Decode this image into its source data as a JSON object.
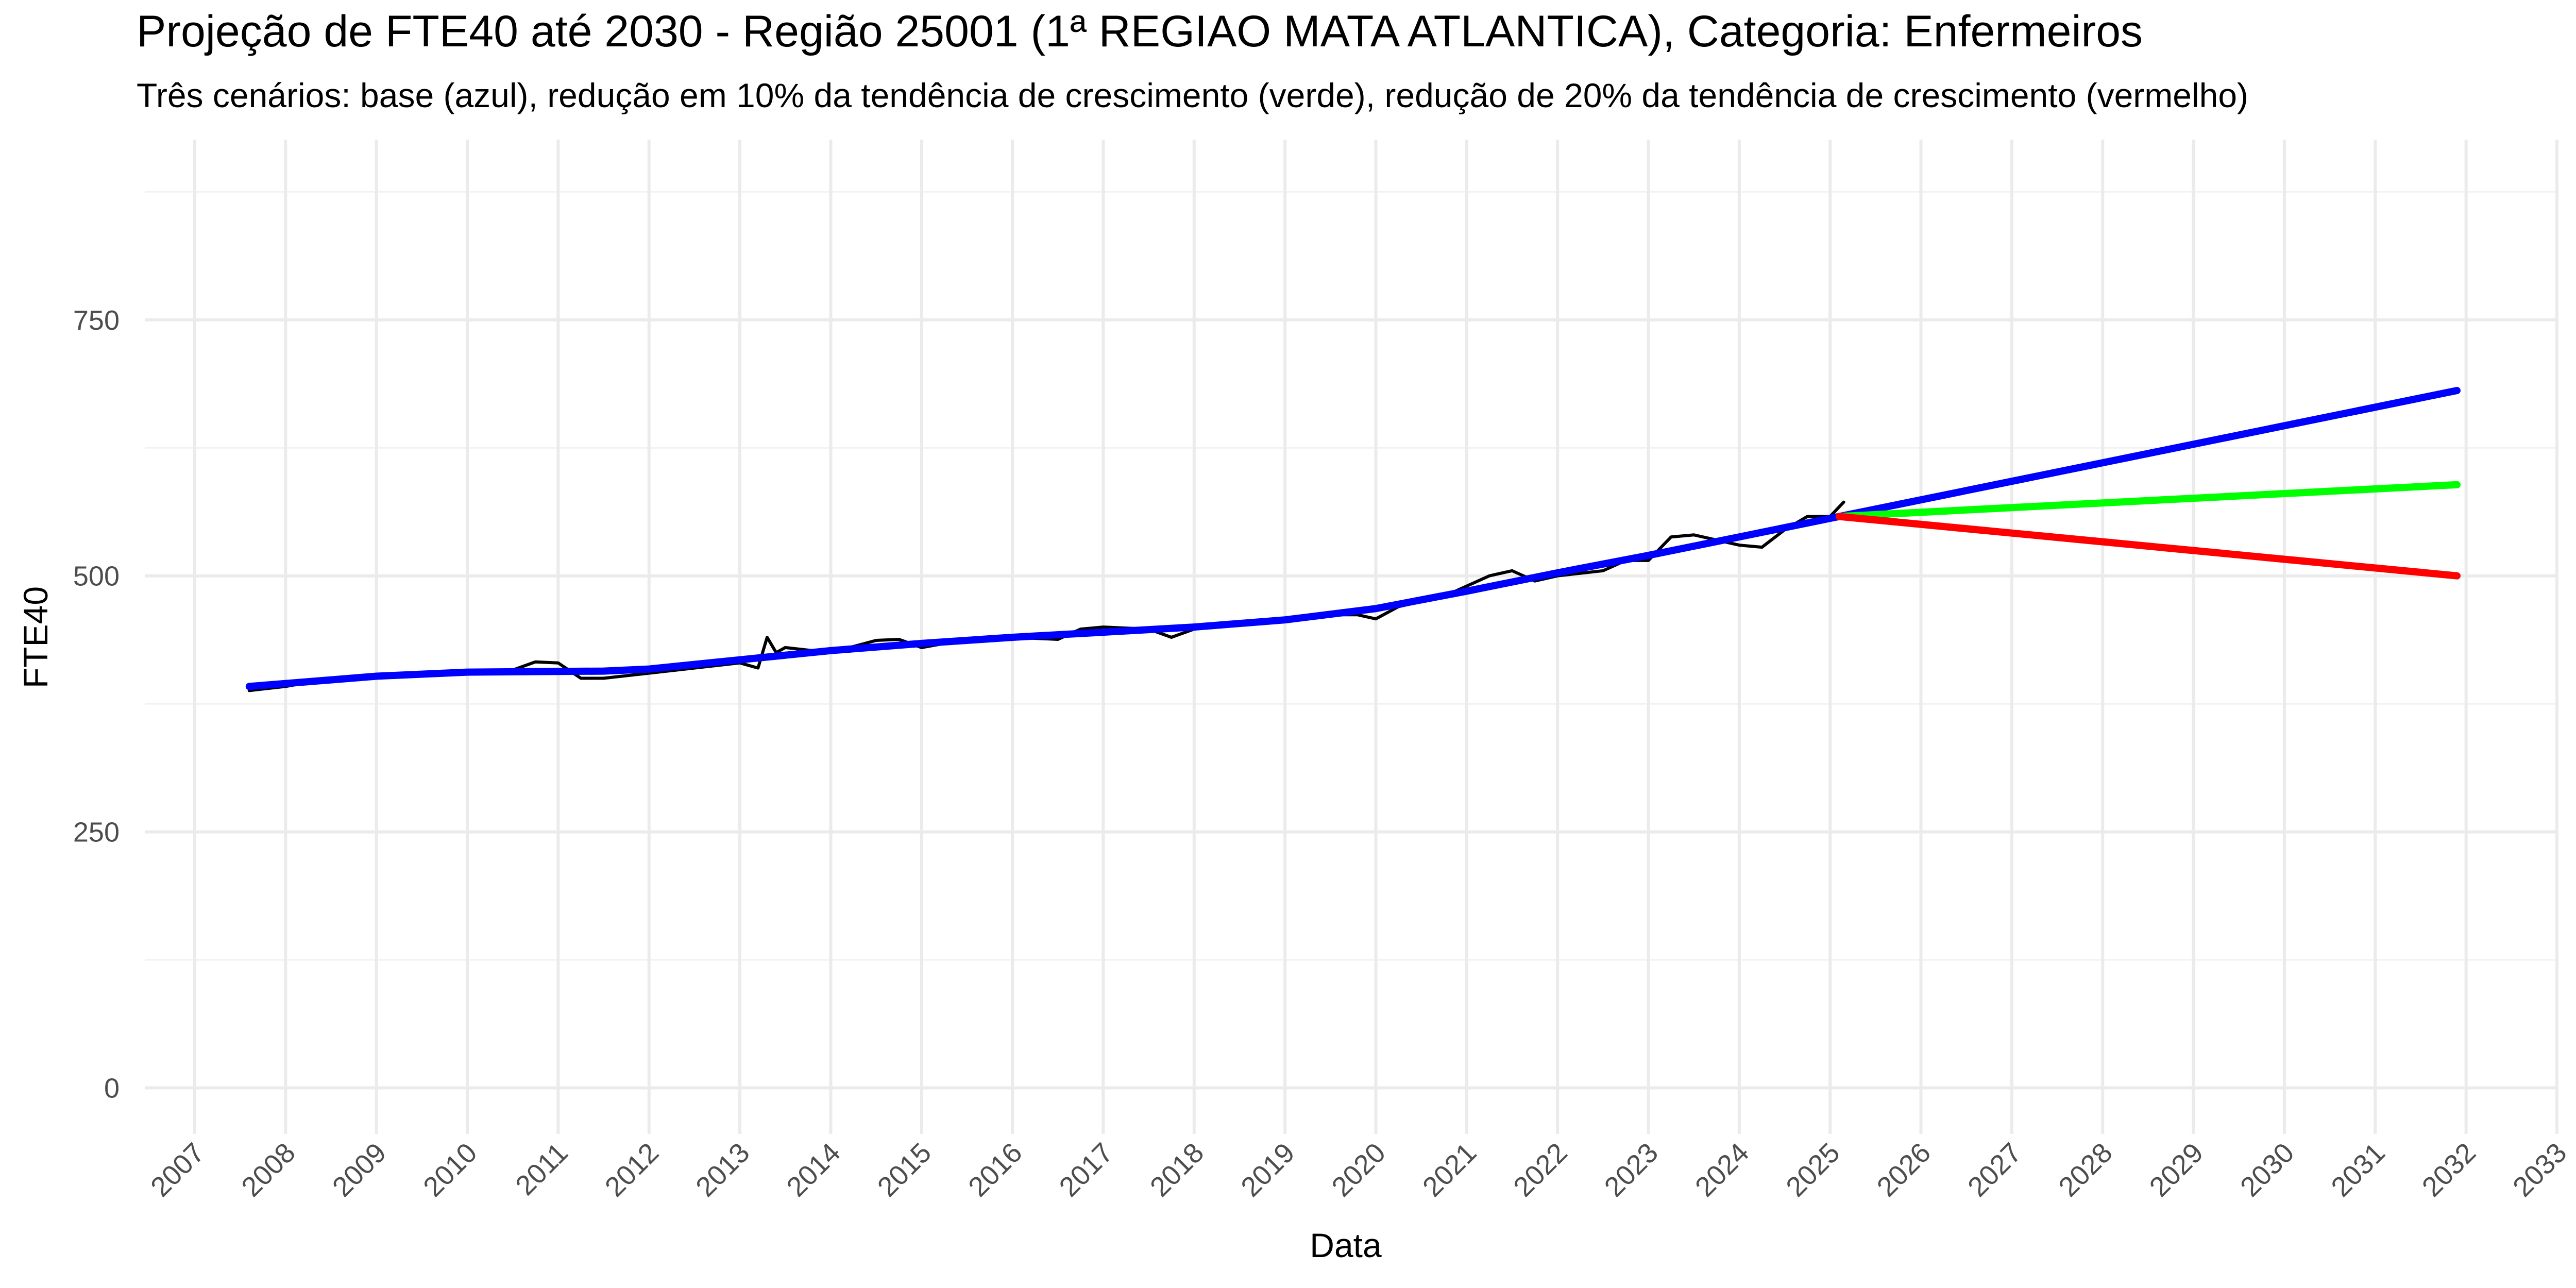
{
  "chart_data": {
    "type": "line",
    "title": "Projeção de FTE40 até 2030 - Região 25001 (1ª REGIAO MATA ATLANTICA), Categoria: Enfermeiros",
    "subtitle": "Três cenários: base (azul), redução em 10% da tendência de crescimento (verde), redução de 20% da tendência de crescimento (vermelho)",
    "x_label": "Data",
    "y_label": "FTE40",
    "xlim": [
      2006.45,
      2033
    ],
    "xticks": [
      2007,
      2008,
      2009,
      2010,
      2011,
      2012,
      2013,
      2014,
      2015,
      2016,
      2017,
      2018,
      2019,
      2020,
      2021,
      2022,
      2023,
      2024,
      2025,
      2026,
      2027,
      2028,
      2029,
      2030,
      2031,
      2032,
      2033
    ],
    "ylim": [
      -45,
      926
    ],
    "yticks": [
      0,
      250,
      500,
      750
    ],
    "y_minor_ticks": [
      125,
      375,
      625,
      875
    ],
    "grid": true,
    "series": [
      {
        "color": "#000000",
        "x": [
          2007.6,
          2008.0,
          2008.5,
          2009.0,
          2009.5,
          2010.0,
          2010.5,
          2010.75,
          2011.0,
          2011.25,
          2011.5,
          2012.0,
          2012.5,
          2013.0,
          2013.2,
          2013.3,
          2013.4,
          2013.5,
          2014.0,
          2014.5,
          2014.75,
          2015.0,
          2015.5,
          2016.0,
          2016.5,
          2016.75,
          2017.0,
          2017.5,
          2017.75,
          2018.0,
          2018.5,
          2019.0,
          2019.5,
          2019.8,
          2020.0,
          2020.25,
          2020.75,
          2021.0,
          2021.25,
          2021.5,
          2021.75,
          2022.0,
          2022.5,
          2022.75,
          2023.0,
          2023.25,
          2023.5,
          2023.75,
          2024.0,
          2024.25,
          2024.5,
          2024.75,
          2025.0,
          2025.15
        ],
        "values": [
          388,
          392,
          400,
          402,
          404,
          405,
          408,
          416,
          415,
          400,
          400,
          405,
          410,
          415,
          410,
          440,
          425,
          430,
          425,
          437,
          438,
          430,
          438,
          440,
          438,
          448,
          450,
          448,
          440,
          448,
          455,
          458,
          462,
          462,
          458,
          470,
          480,
          490,
          500,
          505,
          495,
          500,
          505,
          515,
          515,
          538,
          540,
          535,
          530,
          528,
          545,
          558,
          558,
          572
        ]
      },
      {
        "color": "#0000ff",
        "x": [
          2007.6,
          2009,
          2010,
          2011.5,
          2012,
          2013,
          2014,
          2015,
          2016,
          2017,
          2018,
          2019,
          2020,
          2021,
          2022,
          2023,
          2024,
          2025.1,
          2031.9
        ],
        "values": [
          392,
          402,
          406,
          407,
          409,
          418,
          427,
          434,
          440,
          445,
          450,
          457,
          468,
          485,
          503,
          520,
          538,
          558,
          681
        ]
      },
      {
        "color": "#00ff00",
        "x": [
          2025.1,
          2031.9
        ],
        "values": [
          558,
          589
        ]
      },
      {
        "color": "#ff0000",
        "x": [
          2025.1,
          2031.9
        ],
        "values": [
          558,
          500
        ]
      }
    ]
  }
}
